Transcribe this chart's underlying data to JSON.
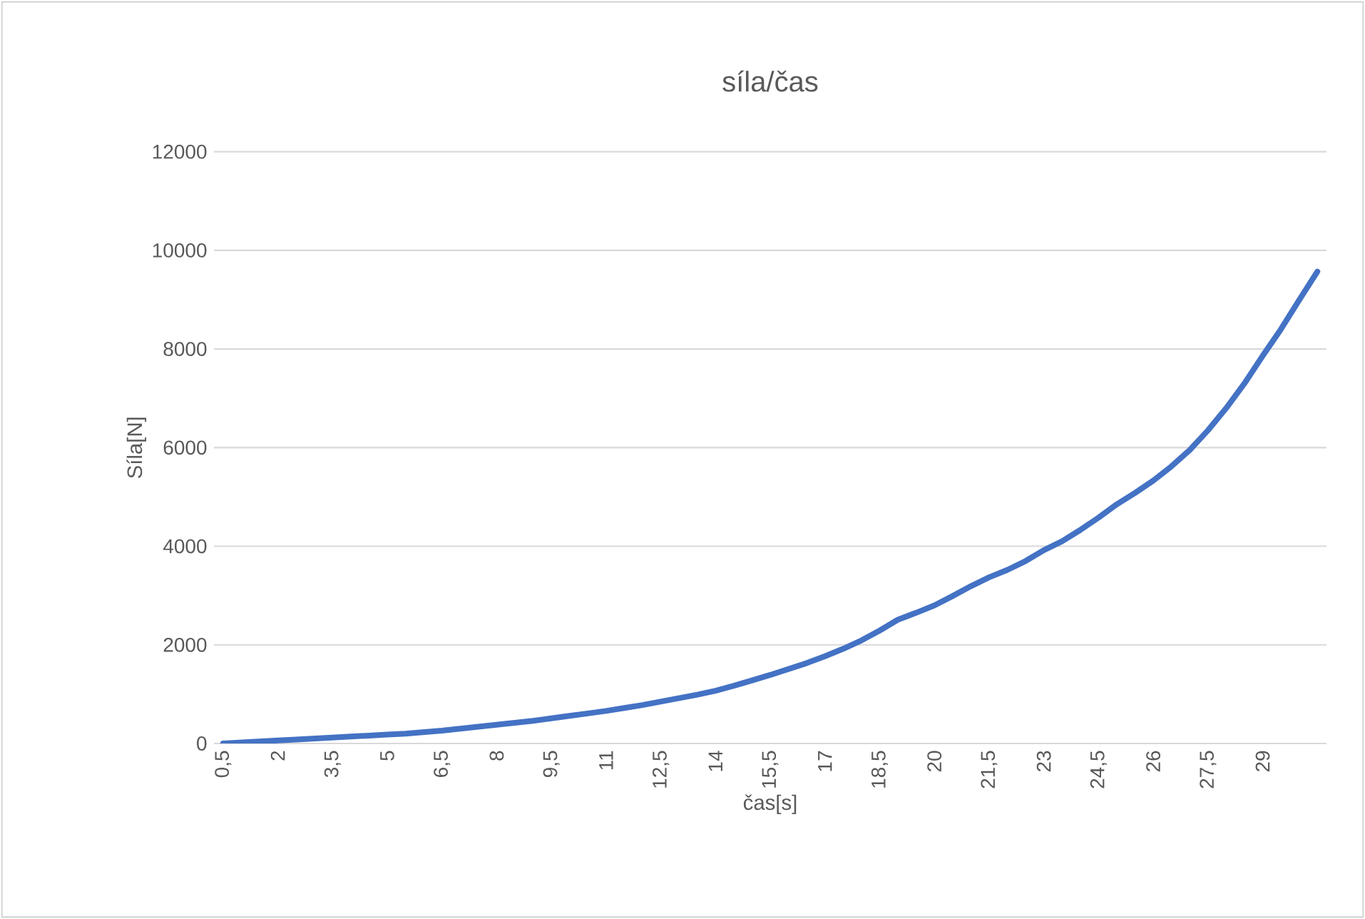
{
  "chart_data": {
    "type": "line",
    "title": "síla/čas",
    "xlabel": "čas[s]",
    "ylabel": "Síla[N]",
    "categories": [
      "0,5",
      null,
      null,
      "2",
      null,
      null,
      "3,5",
      null,
      null,
      "5",
      null,
      null,
      "6,5",
      null,
      null,
      "8",
      null,
      null,
      "9,5",
      null,
      null,
      "11",
      null,
      null,
      "12,5",
      null,
      null,
      "14",
      null,
      null,
      "15,5",
      null,
      null,
      "17",
      null,
      null,
      "18,5",
      null,
      null,
      "20",
      null,
      null,
      "21,5",
      null,
      null,
      "23",
      null,
      null,
      "24,5",
      null,
      null,
      "26",
      null,
      null,
      "27,5",
      null,
      null,
      "29",
      null,
      null,
      null
    ],
    "series": [
      {
        "color": "#4472c4",
        "values": [
          0,
          20,
          40,
          60,
          80,
          100,
          120,
          140,
          160,
          180,
          200,
          230,
          260,
          300,
          340,
          380,
          420,
          460,
          510,
          560,
          610,
          660,
          720,
          780,
          850,
          920,
          990,
          1070,
          1170,
          1280,
          1390,
          1510,
          1630,
          1770,
          1920,
          2090,
          2290,
          2510,
          2650,
          2800,
          2990,
          3190,
          3370,
          3520,
          3700,
          3920,
          4100,
          4330,
          4580,
          4850,
          5080,
          5330,
          5620,
          5950,
          6350,
          6800,
          7300,
          7860,
          8400,
          8990,
          9570
        ]
      }
    ],
    "ylim": [
      0,
      12000
    ],
    "yticks": [
      0,
      2000,
      4000,
      6000,
      8000,
      10000,
      12000
    ],
    "grid": "y",
    "marker": "none",
    "line_style": "solid"
  }
}
